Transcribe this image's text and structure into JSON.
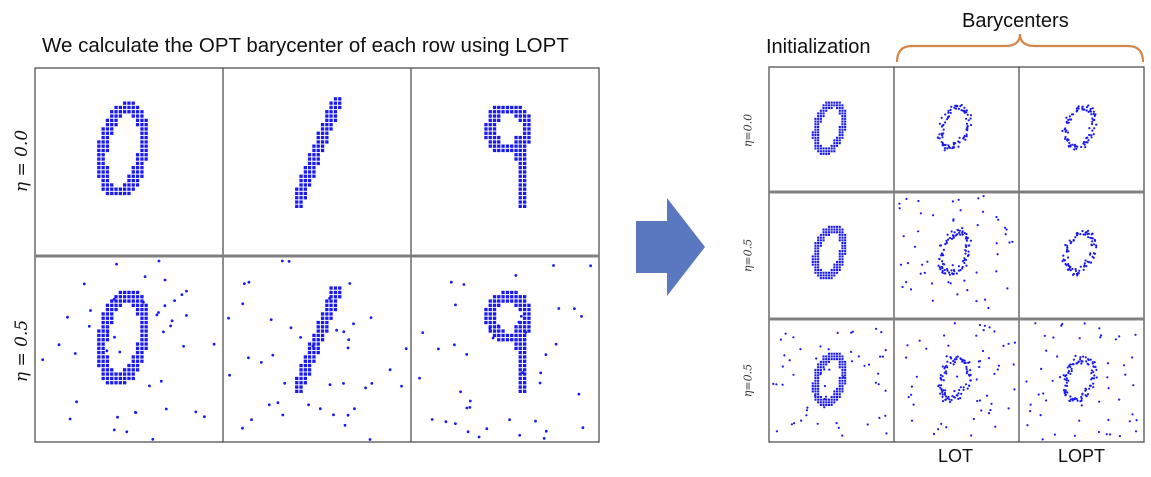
{
  "left_panel": {
    "title": "We calculate the OPT barycenter of each row using LOPT",
    "row_labels": [
      "η = 0.0",
      "η = 0.5"
    ],
    "rows": [
      {
        "noise": false,
        "digits": [
          "0",
          "1",
          "9"
        ]
      },
      {
        "noise": true,
        "digits": [
          "0",
          "1",
          "9"
        ]
      }
    ]
  },
  "right_panel": {
    "initialization_label": "Initialization",
    "barycenters_label": "Barycenters",
    "column_labels": [
      "LOT",
      "LOPT"
    ],
    "row_labels": [
      "η=0.0",
      "η=0.5",
      "η=0.5"
    ],
    "rows": [
      {
        "cells": [
          {
            "type": "init",
            "noise": false
          },
          {
            "type": "bary",
            "noise": false
          },
          {
            "type": "bary",
            "noise": false
          }
        ]
      },
      {
        "cells": [
          {
            "type": "init",
            "noise": false
          },
          {
            "type": "bary",
            "noise": true
          },
          {
            "type": "bary",
            "noise": false
          }
        ]
      },
      {
        "cells": [
          {
            "type": "init",
            "noise": true
          },
          {
            "type": "bary",
            "noise": true
          },
          {
            "type": "bary",
            "noise": true
          }
        ]
      }
    ]
  },
  "colors": {
    "points": "#1a1aee",
    "grid_border": "#444444",
    "row_divider": "#808080",
    "arrow": "#5a78bf",
    "brace": "#d4874a"
  }
}
